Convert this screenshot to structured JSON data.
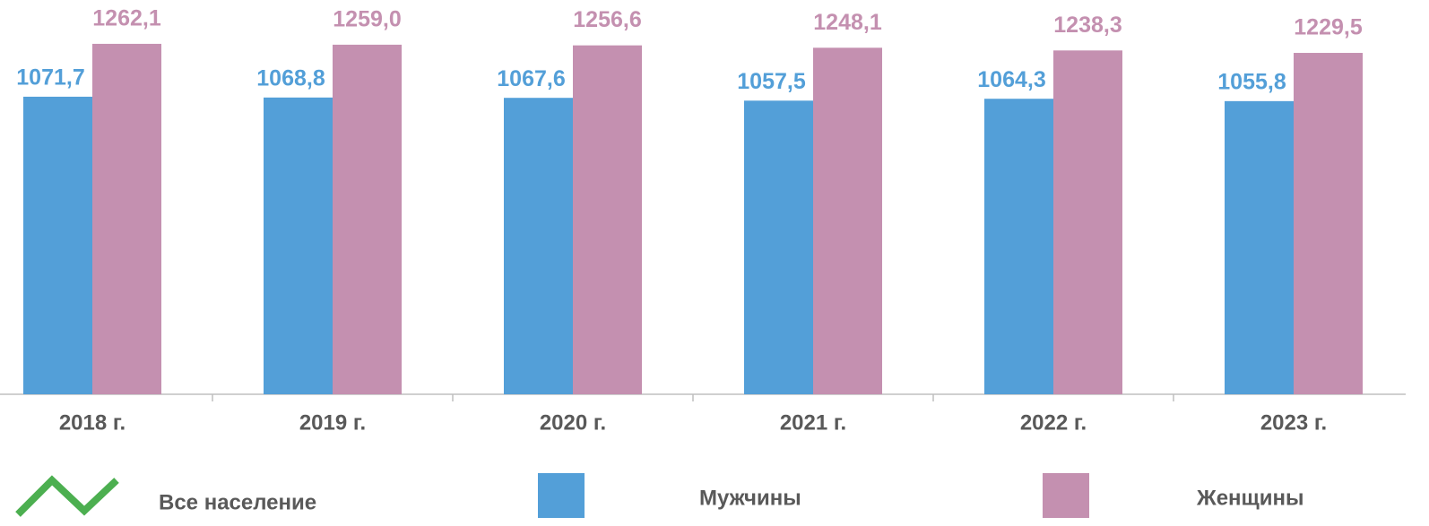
{
  "chart_data": {
    "type": "bar",
    "categories": [
      "2018 г.",
      "2019 г.",
      "2020 г.",
      "2021 г.",
      "2022 г.",
      "2023 г."
    ],
    "series": [
      {
        "name": "Все население",
        "color": "#4caf50",
        "type": "line",
        "values": [
          null,
          null,
          null,
          null,
          null,
          null
        ]
      },
      {
        "name": "Мужчины",
        "color": "#539fd8",
        "values": [
          1071.7,
          1068.8,
          1067.6,
          1057.5,
          1064.3,
          1055.8
        ],
        "value_labels": [
          "1071,7",
          "1068,8",
          "1067,6",
          "1057,5",
          "1064,3",
          "1055,8"
        ]
      },
      {
        "name": "Женщины",
        "color": "#c490b0",
        "values": [
          1262.1,
          1259.0,
          1256.6,
          1248.1,
          1238.3,
          1229.5
        ],
        "value_labels": [
          "1262,1",
          "1259,0",
          "1256,6",
          "1248,1",
          "1238,3",
          "1229,5"
        ]
      }
    ],
    "ylim": [
      0,
      1420
    ]
  }
}
